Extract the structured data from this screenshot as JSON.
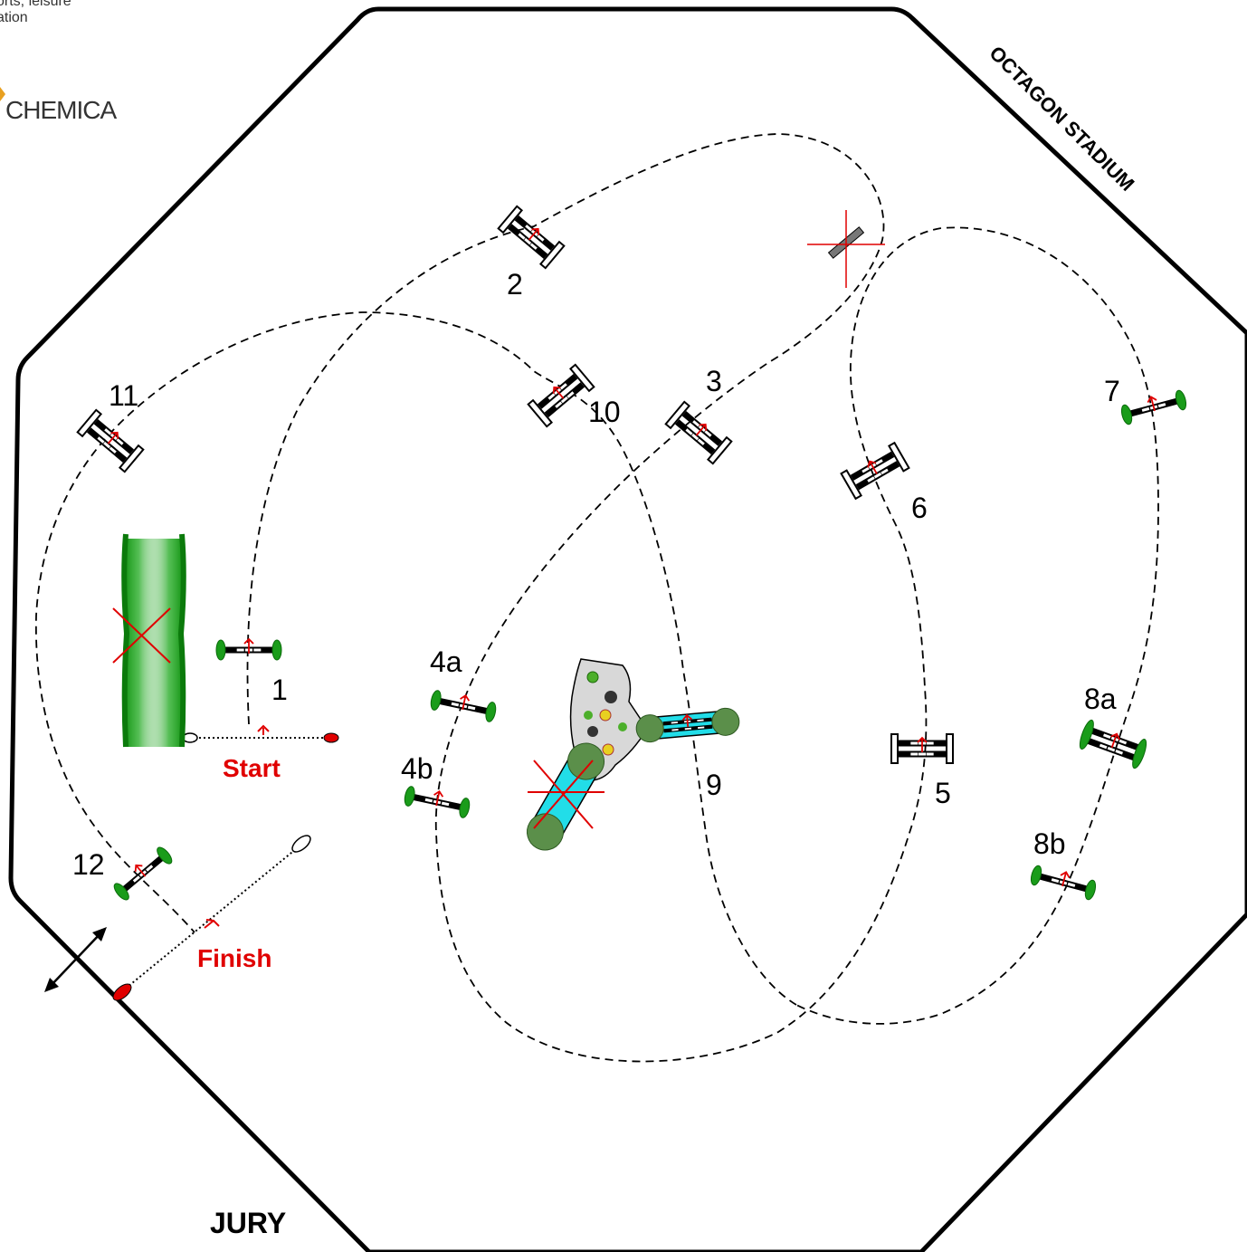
{
  "logo": {
    "line1": "orts, leisure",
    "line2": "ation",
    "brand": "CHEMICA"
  },
  "arena": {
    "name": "OCTAGON STADIUM",
    "jury_label": "JURY",
    "start_label": "Start",
    "finish_label": "Finish"
  },
  "obstacles": [
    {
      "id": "1",
      "label": "1",
      "kind": "vertical-green"
    },
    {
      "id": "2",
      "label": "2",
      "kind": "oxer-white"
    },
    {
      "id": "3",
      "label": "3",
      "kind": "oxer-white"
    },
    {
      "id": "4a",
      "label": "4a",
      "kind": "vertical-green"
    },
    {
      "id": "4b",
      "label": "4b",
      "kind": "vertical-green"
    },
    {
      "id": "5",
      "label": "5",
      "kind": "oxer-white"
    },
    {
      "id": "6",
      "label": "6",
      "kind": "oxer-white"
    },
    {
      "id": "7",
      "label": "7",
      "kind": "vertical-green"
    },
    {
      "id": "8a",
      "label": "8a",
      "kind": "oxer-green"
    },
    {
      "id": "8b",
      "label": "8b",
      "kind": "vertical-green"
    },
    {
      "id": "9",
      "label": "9",
      "kind": "water-oxer"
    },
    {
      "id": "10",
      "label": "10",
      "kind": "oxer-white"
    },
    {
      "id": "11",
      "label": "11",
      "kind": "oxer-white"
    },
    {
      "id": "12",
      "label": "12",
      "kind": "vertical-green"
    }
  ],
  "colors": {
    "route": "#000000",
    "arrow": "#e00000",
    "hedge": "#1aa01a",
    "water": "#22dde8",
    "island": "#d8d8d8"
  }
}
